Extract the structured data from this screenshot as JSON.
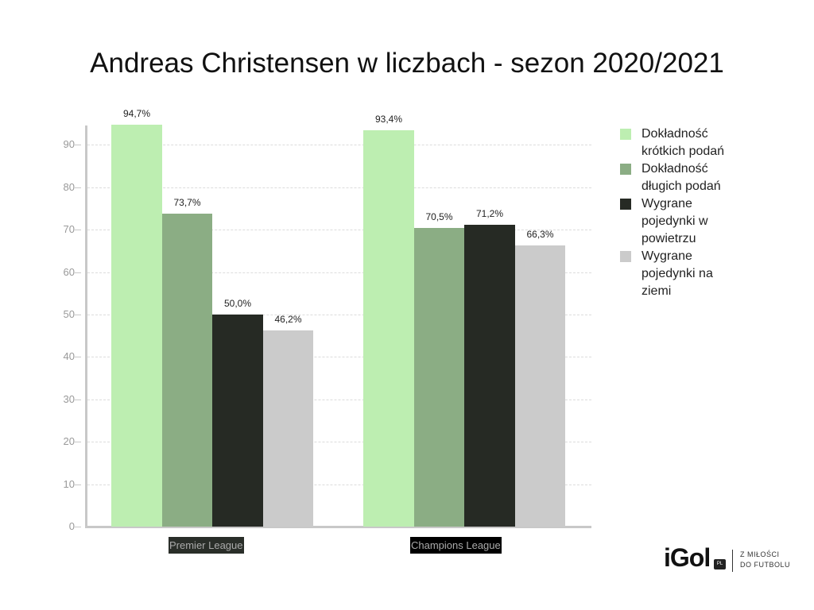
{
  "title": "Andreas Christensen w liczbach - sezon 2020/2021",
  "chart_data": {
    "type": "bar",
    "title": "Andreas Christensen w liczbach - sezon 2020/2021",
    "xlabel": "",
    "ylabel": "",
    "ylim": [
      0,
      95
    ],
    "yticks": [
      "0",
      "10",
      "20",
      "30",
      "40",
      "50",
      "60",
      "70",
      "80",
      "90"
    ],
    "grid": true,
    "legend_position": "right",
    "categories": [
      "Premier League",
      "Champions League"
    ],
    "series": [
      {
        "name": "Dokładność krótkich podań",
        "color": "#bdeeb1",
        "values": [
          94.7,
          93.4
        ],
        "labels": [
          "94,7%",
          "93,4%"
        ]
      },
      {
        "name": "Dokładność długich podań",
        "color": "#8bad84",
        "values": [
          73.7,
          70.5
        ],
        "labels": [
          "73,7%",
          "70,5%"
        ]
      },
      {
        "name": "Wygrane pojedynki w powietrzu",
        "color": "#262a24",
        "values": [
          50.0,
          71.2
        ],
        "labels": [
          "50,0%",
          "71,2%"
        ]
      },
      {
        "name": "Wygrane pojedynki na ziemi",
        "color": "#cbcbcb",
        "values": [
          46.2,
          66.3
        ],
        "labels": [
          "46,2%",
          "66,3%"
        ]
      }
    ]
  },
  "legend": [
    {
      "line1": "Dokładność",
      "line2": "krótkich podań",
      "line3": ""
    },
    {
      "line1": "Dokładność",
      "line2": "długich podań",
      "line3": ""
    },
    {
      "line1": "Wygrane",
      "line2": "pojedynki w",
      "line3": "powietrzu"
    },
    {
      "line1": "Wygrane",
      "line2": "pojedynki na",
      "line3": "ziemi"
    }
  ],
  "brand": {
    "logo": "iGol",
    "badge": "PL",
    "tagline1": "Z MIŁOŚCI",
    "tagline2": "DO FUTBOLU"
  }
}
